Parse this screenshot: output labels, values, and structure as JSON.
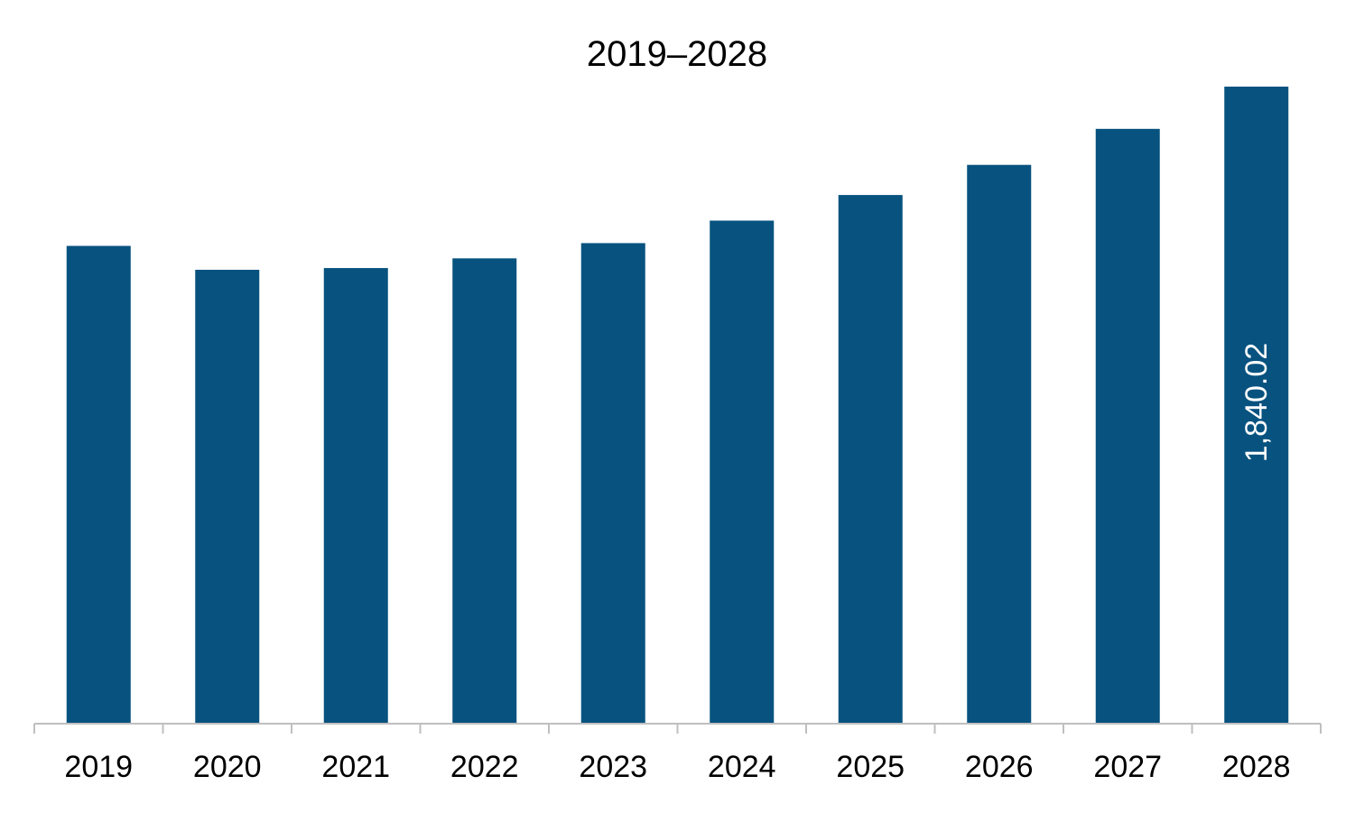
{
  "chart_data": {
    "type": "bar",
    "title": "2019–2028",
    "xlabel": "",
    "ylabel": "",
    "categories": [
      "2019",
      "2020",
      "2021",
      "2022",
      "2023",
      "2024",
      "2025",
      "2026",
      "2027",
      "2028"
    ],
    "values": [
      1380,
      1311,
      1316,
      1344,
      1388,
      1453,
      1527,
      1614,
      1718,
      1840.02
    ],
    "data_labels": [
      "",
      "",
      "",
      "",
      "",
      "",
      "",
      "",
      "",
      "1,840.02"
    ],
    "ylim": [
      0,
      1840.02
    ],
    "grid": false,
    "legend": "none",
    "bar_color": "#07527f",
    "axis_color": "#bfbfbf"
  }
}
